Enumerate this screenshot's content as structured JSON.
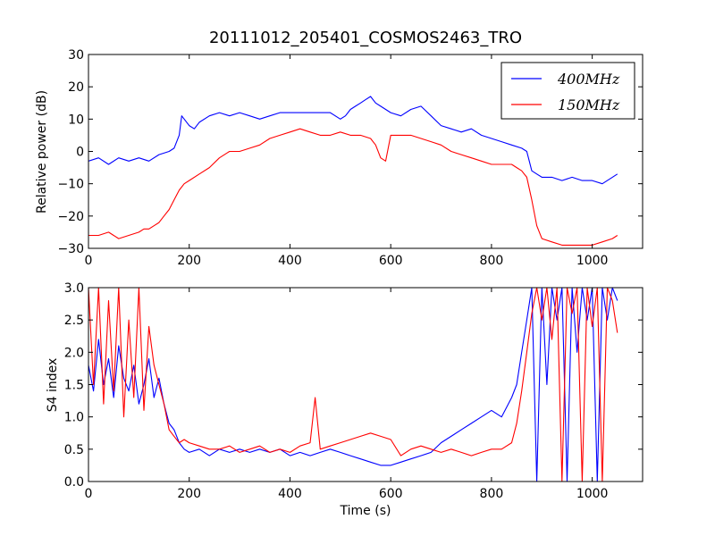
{
  "figure": {
    "title": "20111012_205401_COSMOS2463_TRO",
    "xlabel": "Time (s)"
  },
  "chart_data": [
    {
      "type": "line",
      "title": "20111012_205401_COSMOS2463_TRO",
      "xlabel": "",
      "ylabel": "Relative power (dB)",
      "xlim": [
        0,
        1100
      ],
      "ylim": [
        -30,
        30
      ],
      "xticks": [
        0,
        200,
        400,
        600,
        800,
        1000
      ],
      "yticks": [
        -30,
        -20,
        -10,
        0,
        10,
        20,
        30
      ],
      "yticklabels": [
        "−30",
        "−20",
        "−10",
        "0",
        "10",
        "20",
        "30"
      ],
      "legend": {
        "location": "top-right",
        "entries": [
          "400MHz",
          "150MHz"
        ]
      },
      "series": [
        {
          "name": "400MHz",
          "color": "#0000ff",
          "x": [
            0,
            20,
            40,
            60,
            80,
            100,
            120,
            140,
            160,
            170,
            180,
            185,
            190,
            200,
            210,
            220,
            240,
            260,
            280,
            300,
            320,
            340,
            360,
            380,
            400,
            420,
            440,
            460,
            480,
            500,
            510,
            520,
            530,
            540,
            550,
            560,
            570,
            580,
            600,
            620,
            640,
            660,
            680,
            700,
            720,
            740,
            760,
            780,
            800,
            820,
            840,
            860,
            870,
            875,
            880,
            890,
            900,
            920,
            940,
            960,
            980,
            1000,
            1020,
            1040,
            1050
          ],
          "y": [
            -3,
            -2,
            -4,
            -2,
            -3,
            -2,
            -3,
            -1,
            0,
            1,
            5,
            11,
            10,
            8,
            7,
            9,
            11,
            12,
            11,
            12,
            11,
            10,
            11,
            12,
            12,
            12,
            12,
            12,
            12,
            10,
            11,
            13,
            14,
            15,
            16,
            17,
            15,
            14,
            12,
            11,
            13,
            14,
            11,
            8,
            7,
            6,
            7,
            5,
            4,
            3,
            2,
            1,
            0,
            -3,
            -6,
            -7,
            -8,
            -8,
            -9,
            -8,
            -9,
            -9,
            -10,
            -8,
            -7
          ]
        },
        {
          "name": "150MHz",
          "color": "#ff0000",
          "x": [
            0,
            20,
            40,
            60,
            80,
            100,
            110,
            120,
            130,
            140,
            150,
            160,
            170,
            180,
            190,
            200,
            220,
            240,
            260,
            280,
            300,
            320,
            340,
            360,
            380,
            400,
            420,
            440,
            460,
            480,
            500,
            520,
            540,
            560,
            570,
            580,
            590,
            600,
            610,
            620,
            640,
            660,
            680,
            700,
            720,
            740,
            760,
            780,
            800,
            820,
            840,
            850,
            860,
            870,
            880,
            890,
            900,
            920,
            940,
            960,
            980,
            1000,
            1020,
            1040,
            1050
          ],
          "y": [
            -26,
            -26,
            -25,
            -27,
            -26,
            -25,
            -24,
            -24,
            -23,
            -22,
            -20,
            -18,
            -15,
            -12,
            -10,
            -9,
            -7,
            -5,
            -2,
            0,
            0,
            1,
            2,
            4,
            5,
            6,
            7,
            6,
            5,
            5,
            6,
            5,
            5,
            4,
            2,
            -2,
            -3,
            5,
            5,
            5,
            5,
            4,
            3,
            2,
            0,
            -1,
            -2,
            -3,
            -4,
            -4,
            -4,
            -5,
            -6,
            -8,
            -15,
            -23,
            -27,
            -28,
            -29,
            -29,
            -29,
            -29,
            -28,
            -27,
            -26
          ]
        }
      ]
    },
    {
      "type": "line",
      "title": "",
      "xlabel": "Time (s)",
      "ylabel": "S4 index",
      "xlim": [
        0,
        1100
      ],
      "ylim": [
        0.0,
        3.0
      ],
      "xticks": [
        0,
        200,
        400,
        600,
        800,
        1000
      ],
      "yticks": [
        0.0,
        0.5,
        1.0,
        1.5,
        2.0,
        2.5,
        3.0
      ],
      "yticklabels": [
        "0.0",
        "0.5",
        "1.0",
        "1.5",
        "2.0",
        "2.5",
        "3.0"
      ],
      "series": [
        {
          "name": "400MHz",
          "color": "#0000ff",
          "x": [
            0,
            10,
            20,
            30,
            40,
            50,
            60,
            70,
            80,
            90,
            100,
            110,
            120,
            130,
            140,
            150,
            160,
            170,
            180,
            190,
            200,
            220,
            240,
            260,
            280,
            300,
            320,
            340,
            360,
            380,
            400,
            420,
            440,
            460,
            480,
            500,
            520,
            540,
            560,
            580,
            600,
            620,
            640,
            660,
            680,
            700,
            720,
            740,
            760,
            780,
            800,
            820,
            840,
            850,
            860,
            870,
            880,
            890,
            900,
            910,
            920,
            930,
            940,
            950,
            960,
            970,
            980,
            990,
            1000,
            1010,
            1020,
            1030,
            1040,
            1050
          ],
          "y": [
            1.8,
            1.4,
            2.2,
            1.5,
            1.9,
            1.3,
            2.1,
            1.6,
            1.4,
            1.8,
            1.2,
            1.5,
            1.9,
            1.3,
            1.6,
            1.2,
            0.9,
            0.8,
            0.6,
            0.5,
            0.45,
            0.5,
            0.4,
            0.5,
            0.45,
            0.5,
            0.45,
            0.5,
            0.45,
            0.5,
            0.4,
            0.45,
            0.4,
            0.45,
            0.5,
            0.45,
            0.4,
            0.35,
            0.3,
            0.25,
            0.25,
            0.3,
            0.35,
            0.4,
            0.45,
            0.6,
            0.7,
            0.8,
            0.9,
            1.0,
            1.1,
            1.0,
            1.3,
            1.5,
            2.0,
            2.5,
            3.0,
            0.0,
            3.0,
            1.5,
            3.0,
            2.5,
            3.0,
            0.0,
            3.0,
            2.0,
            3.0,
            2.5,
            3.0,
            0.0,
            3.0,
            2.5,
            3.0,
            2.8
          ]
        },
        {
          "name": "150MHz",
          "color": "#ff0000",
          "x": [
            0,
            10,
            20,
            30,
            40,
            50,
            60,
            70,
            80,
            90,
            100,
            110,
            120,
            130,
            140,
            150,
            160,
            170,
            180,
            190,
            200,
            220,
            240,
            260,
            280,
            300,
            320,
            340,
            360,
            380,
            400,
            420,
            440,
            450,
            460,
            480,
            500,
            520,
            540,
            560,
            580,
            600,
            620,
            640,
            660,
            680,
            700,
            720,
            740,
            760,
            780,
            800,
            820,
            840,
            850,
            860,
            870,
            880,
            890,
            900,
            910,
            920,
            930,
            940,
            950,
            960,
            970,
            980,
            990,
            1000,
            1010,
            1020,
            1030,
            1040,
            1050
          ],
          "y": [
            3.0,
            1.5,
            3.0,
            1.2,
            2.8,
            1.4,
            3.0,
            1.0,
            2.5,
            1.3,
            3.0,
            1.1,
            2.4,
            1.8,
            1.5,
            1.2,
            0.8,
            0.7,
            0.6,
            0.65,
            0.6,
            0.55,
            0.5,
            0.5,
            0.55,
            0.45,
            0.5,
            0.55,
            0.45,
            0.5,
            0.45,
            0.55,
            0.6,
            1.3,
            0.5,
            0.55,
            0.6,
            0.65,
            0.7,
            0.75,
            0.7,
            0.65,
            0.4,
            0.5,
            0.55,
            0.5,
            0.45,
            0.5,
            0.45,
            0.4,
            0.45,
            0.5,
            0.5,
            0.6,
            0.9,
            1.4,
            2.0,
            2.6,
            3.0,
            2.5,
            3.0,
            2.2,
            3.0,
            0.0,
            3.0,
            2.6,
            3.0,
            0.0,
            3.0,
            2.4,
            3.0,
            0.0,
            3.0,
            2.8,
            2.3
          ]
        }
      ]
    }
  ]
}
